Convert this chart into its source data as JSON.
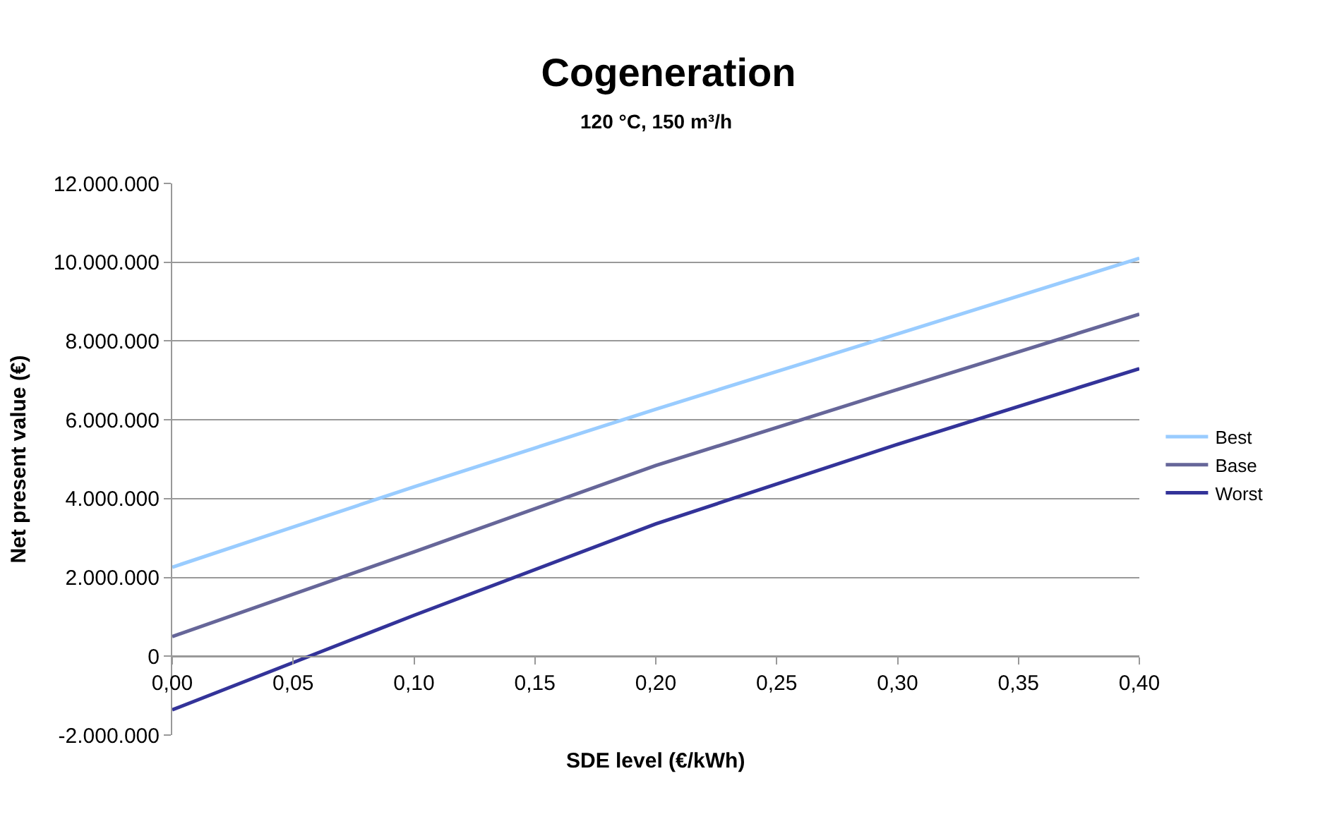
{
  "chart_data": {
    "type": "line",
    "title": "Cogeneration",
    "subtitle": "120 °C, 150 m³/h",
    "xlabel": "SDE level (€/kWh)",
    "ylabel": "Net present value (€)",
    "x": [
      0,
      0.1,
      0.2,
      0.3,
      0.4
    ],
    "series": [
      {
        "name": "Best",
        "color": "#99ccff",
        "values": [
          2260000,
          4300000,
          6270000,
          8180000,
          10100000
        ]
      },
      {
        "name": "Base",
        "color": "#666699",
        "values": [
          500000,
          2650000,
          4840000,
          6770000,
          8680000
        ]
      },
      {
        "name": "Worst",
        "color": "#333399",
        "values": [
          -1360000,
          1040000,
          3360000,
          5380000,
          7300000
        ]
      }
    ],
    "xlim": [
      0,
      0.4
    ],
    "xticks": [
      {
        "value": 0,
        "label": "0,00"
      },
      {
        "value": 0.05,
        "label": "0,05"
      },
      {
        "value": 0.1,
        "label": "0,10"
      },
      {
        "value": 0.15,
        "label": "0,15"
      },
      {
        "value": 0.2,
        "label": "0,20"
      },
      {
        "value": 0.25,
        "label": "0,25"
      },
      {
        "value": 0.3,
        "label": "0,30"
      },
      {
        "value": 0.35,
        "label": "0,35"
      },
      {
        "value": 0.4,
        "label": "0,40"
      }
    ],
    "ylim": [
      -2000000,
      12000000
    ],
    "yticks": [
      {
        "value": -2000000,
        "label": "-2.000.000"
      },
      0,
      {
        "value": 2000000,
        "label": "2.000.000"
      },
      {
        "value": 4000000,
        "label": "4.000.000"
      },
      {
        "value": 6000000,
        "label": "6.000.000"
      },
      {
        "value": 8000000,
        "label": "8.000.000"
      },
      {
        "value": 10000000,
        "label": "10.000.000"
      },
      {
        "value": 12000000,
        "label": "12.000.000"
      }
    ],
    "grid": "y",
    "legend": "right",
    "marker": "none",
    "line_style": "solid"
  }
}
